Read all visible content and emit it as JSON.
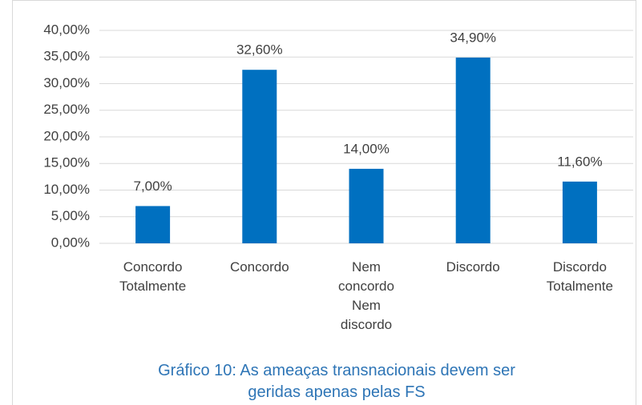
{
  "chart_data": {
    "type": "bar",
    "title": "Gráfico 10:  As ameaças transnacionais devem ser geridas apenas pelas FS",
    "categories": [
      "Concordo Totalmente",
      "Concordo",
      "Nem concordo Nem discordo",
      "Discordo",
      "Discordo Totalmente"
    ],
    "values": [
      7,
      32.6,
      14,
      34.9,
      11.6
    ],
    "value_labels": [
      "7,00%",
      "32,60%",
      "14,00%",
      "34,90%",
      "11,60%"
    ],
    "color": "#0070c0",
    "ylim": [
      0,
      40
    ],
    "yticks": [
      {
        "value": 0,
        "label": "0,00%"
      },
      {
        "value": 5,
        "label": "5,00%"
      },
      {
        "value": 10,
        "label": "10,00%"
      },
      {
        "value": 15,
        "label": "15,00%"
      },
      {
        "value": 20,
        "label": "20,00%"
      },
      {
        "value": 25,
        "label": "25,00%"
      },
      {
        "value": 30,
        "label": "30,00%"
      },
      {
        "value": 35,
        "label": "35,00%"
      },
      {
        "value": 40,
        "label": "40,00%"
      }
    ],
    "grid": true
  }
}
